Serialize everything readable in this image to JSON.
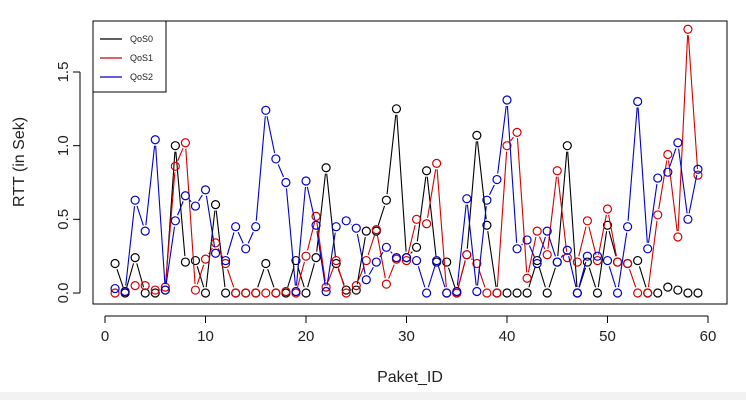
{
  "chart_data": {
    "type": "line",
    "xlabel": "Paket_ID",
    "ylabel": "RTT (in Sek)",
    "xlim": [
      1,
      59
    ],
    "ylim": [
      0,
      1.8
    ],
    "xticks": [
      0,
      10,
      20,
      30,
      40,
      50,
      60
    ],
    "yticks": [
      0.0,
      0.5,
      1.0,
      1.5
    ],
    "xtick_labels": [
      "0",
      "10",
      "20",
      "30",
      "40",
      "50",
      "60"
    ],
    "ytick_labels": [
      "0.0",
      "0.5",
      "1.0",
      "1.5"
    ],
    "legend_position": "top-left",
    "grid": false,
    "x": [
      1,
      2,
      3,
      4,
      5,
      6,
      7,
      8,
      9,
      10,
      11,
      12,
      13,
      14,
      15,
      16,
      17,
      18,
      19,
      20,
      21,
      22,
      23,
      24,
      25,
      26,
      27,
      28,
      29,
      30,
      31,
      32,
      33,
      34,
      35,
      36,
      37,
      38,
      39,
      40,
      41,
      42,
      43,
      44,
      45,
      46,
      47,
      48,
      49,
      50,
      51,
      52,
      53,
      54,
      55,
      56,
      57,
      58,
      59
    ],
    "series": [
      {
        "name": "QoS0",
        "color": "#000000",
        "values": [
          0.2,
          0.0,
          0.24,
          0.0,
          0.0,
          0.02,
          1.0,
          0.21,
          0.22,
          0.0,
          0.6,
          0.0,
          0.0,
          0.0,
          0.0,
          0.2,
          0.0,
          0.0,
          0.22,
          0.0,
          0.24,
          0.85,
          0.2,
          0.02,
          0.02,
          0.42,
          0.42,
          0.63,
          1.25,
          0.24,
          0.31,
          0.83,
          0.21,
          0.21,
          0.0,
          0.26,
          1.07,
          0.46,
          0.0,
          0.0,
          0.0,
          0.0,
          0.22,
          0.0,
          0.21,
          1.0,
          0.0,
          0.21,
          0.0,
          0.46,
          0.21,
          0.2,
          0.22,
          0.0,
          0.0,
          0.04,
          0.02,
          0.0,
          0.0
        ]
      },
      {
        "name": "QoS1",
        "color": "#d40000",
        "values": [
          0.0,
          0.01,
          0.05,
          0.05,
          0.02,
          0.04,
          0.86,
          1.02,
          0.02,
          0.23,
          0.34,
          0.2,
          0.0,
          0.0,
          0.0,
          0.0,
          0.0,
          0.01,
          0.0,
          0.25,
          0.52,
          0.04,
          0.22,
          0.0,
          0.05,
          0.22,
          0.43,
          0.06,
          0.23,
          0.22,
          0.5,
          0.47,
          0.88,
          0.0,
          0.0,
          0.26,
          0.2,
          0.0,
          0.0,
          1.0,
          1.09,
          0.1,
          0.42,
          0.26,
          0.83,
          0.24,
          0.21,
          0.49,
          0.22,
          0.57,
          0.21,
          0.2,
          0.0,
          0.0,
          0.53,
          0.94,
          0.38,
          1.79,
          0.8
        ]
      },
      {
        "name": "QoS2",
        "color": "#0000cc",
        "values": [
          0.03,
          0.01,
          0.63,
          0.42,
          1.04,
          0.02,
          0.49,
          0.66,
          0.59,
          0.7,
          0.27,
          0.22,
          0.45,
          0.3,
          0.45,
          1.24,
          0.91,
          0.75,
          0.01,
          0.76,
          0.46,
          0.01,
          0.45,
          0.49,
          0.44,
          0.09,
          0.21,
          0.31,
          0.24,
          0.24,
          0.22,
          0.0,
          0.22,
          0.0,
          0.01,
          0.64,
          0.01,
          0.63,
          0.77,
          1.31,
          0.3,
          0.36,
          0.2,
          0.42,
          0.21,
          0.29,
          0.0,
          0.25,
          0.25,
          0.22,
          0.0,
          0.45,
          1.3,
          0.3,
          0.78,
          0.82,
          1.02,
          0.5,
          0.84
        ]
      }
    ]
  }
}
